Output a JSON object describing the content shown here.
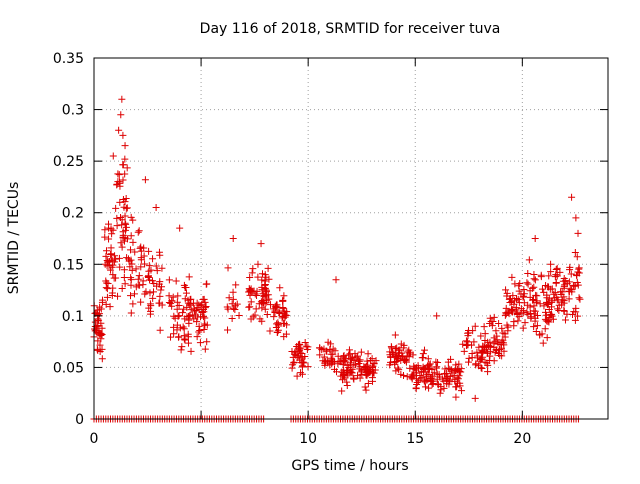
{
  "chart_data": {
    "type": "scatter",
    "title": "Day 116 of 2018, SRMTID for receiver tuva",
    "xlabel": "GPS time / hours",
    "ylabel": "SRMTID / TECUs",
    "xlim": [
      0,
      24
    ],
    "ylim": [
      0,
      0.35
    ],
    "x_ticks": [
      0,
      5,
      10,
      15,
      20
    ],
    "x_tick_labels": [
      "0",
      "5",
      "10",
      "15",
      "20"
    ],
    "y_ticks": [
      0,
      0.05,
      0.1,
      0.15,
      0.2,
      0.25,
      0.3,
      0.35
    ],
    "y_tick_labels": [
      "0",
      "0.05",
      "0.1",
      "0.15",
      "0.2",
      "0.25",
      "0.3",
      "0.35"
    ],
    "grid": true,
    "marker": "+",
    "marker_color": "#dd0000",
    "grid_color": "#a0a0a0",
    "clusters": [
      {
        "x_start": 0.0,
        "x_end": 0.4,
        "y_center": 0.09,
        "y_spread": 0.04,
        "count": 40
      },
      {
        "x_start": 0.5,
        "x_end": 1.0,
        "y_center": 0.15,
        "y_spread": 0.07,
        "count": 40
      },
      {
        "x_start": 1.0,
        "x_end": 1.6,
        "y_center": 0.2,
        "y_spread": 0.09,
        "count": 50
      },
      {
        "x_start": 1.6,
        "x_end": 2.4,
        "y_center": 0.15,
        "y_spread": 0.06,
        "count": 40
      },
      {
        "x_start": 2.4,
        "x_end": 3.2,
        "y_center": 0.13,
        "y_spread": 0.06,
        "count": 35
      },
      {
        "x_start": 3.5,
        "x_end": 4.6,
        "y_center": 0.1,
        "y_spread": 0.05,
        "count": 60
      },
      {
        "x_start": 4.6,
        "x_end": 5.3,
        "y_center": 0.1,
        "y_spread": 0.04,
        "count": 40
      },
      {
        "x_start": 6.2,
        "x_end": 6.8,
        "y_center": 0.11,
        "y_spread": 0.04,
        "count": 15
      },
      {
        "x_start": 7.2,
        "x_end": 8.2,
        "y_center": 0.12,
        "y_spread": 0.04,
        "count": 60
      },
      {
        "x_start": 8.2,
        "x_end": 9.0,
        "y_center": 0.1,
        "y_spread": 0.03,
        "count": 45
      },
      {
        "x_start": 9.2,
        "x_end": 10.0,
        "y_center": 0.06,
        "y_spread": 0.025,
        "count": 40
      },
      {
        "x_start": 10.5,
        "x_end": 11.5,
        "y_center": 0.06,
        "y_spread": 0.02,
        "count": 35
      },
      {
        "x_start": 11.5,
        "x_end": 12.3,
        "y_center": 0.05,
        "y_spread": 0.025,
        "count": 50
      },
      {
        "x_start": 12.3,
        "x_end": 13.2,
        "y_center": 0.05,
        "y_spread": 0.025,
        "count": 50
      },
      {
        "x_start": 13.8,
        "x_end": 14.8,
        "y_center": 0.06,
        "y_spread": 0.025,
        "count": 55
      },
      {
        "x_start": 14.8,
        "x_end": 15.7,
        "y_center": 0.045,
        "y_spread": 0.025,
        "count": 55
      },
      {
        "x_start": 15.7,
        "x_end": 17.2,
        "y_center": 0.04,
        "y_spread": 0.025,
        "count": 70
      },
      {
        "x_start": 17.2,
        "x_end": 18.2,
        "y_center": 0.07,
        "y_spread": 0.04,
        "count": 40
      },
      {
        "x_start": 18.2,
        "x_end": 19.2,
        "y_center": 0.075,
        "y_spread": 0.035,
        "count": 55
      },
      {
        "x_start": 19.2,
        "x_end": 20.3,
        "y_center": 0.11,
        "y_spread": 0.045,
        "count": 60
      },
      {
        "x_start": 20.3,
        "x_end": 21.3,
        "y_center": 0.11,
        "y_spread": 0.05,
        "count": 60
      },
      {
        "x_start": 21.3,
        "x_end": 22.0,
        "y_center": 0.12,
        "y_spread": 0.04,
        "count": 45
      },
      {
        "x_start": 22.0,
        "x_end": 22.7,
        "y_center": 0.13,
        "y_spread": 0.05,
        "count": 35
      }
    ],
    "outliers": [
      {
        "x": 1.3,
        "y": 0.31
      },
      {
        "x": 1.25,
        "y": 0.295
      },
      {
        "x": 1.15,
        "y": 0.28
      },
      {
        "x": 1.35,
        "y": 0.275
      },
      {
        "x": 0.9,
        "y": 0.255
      },
      {
        "x": 1.45,
        "y": 0.265
      },
      {
        "x": 2.4,
        "y": 0.232
      },
      {
        "x": 2.9,
        "y": 0.205
      },
      {
        "x": 4.0,
        "y": 0.185
      },
      {
        "x": 6.5,
        "y": 0.175
      },
      {
        "x": 7.8,
        "y": 0.17
      },
      {
        "x": 11.3,
        "y": 0.135
      },
      {
        "x": 20.6,
        "y": 0.175
      },
      {
        "x": 22.3,
        "y": 0.215
      },
      {
        "x": 22.5,
        "y": 0.195
      },
      {
        "x": 22.6,
        "y": 0.18
      },
      {
        "x": 16.0,
        "y": 0.1
      },
      {
        "x": 17.8,
        "y": 0.02
      }
    ],
    "baseline_segments": [
      [
        0.0,
        8.0
      ],
      [
        9.2,
        22.7
      ]
    ]
  }
}
